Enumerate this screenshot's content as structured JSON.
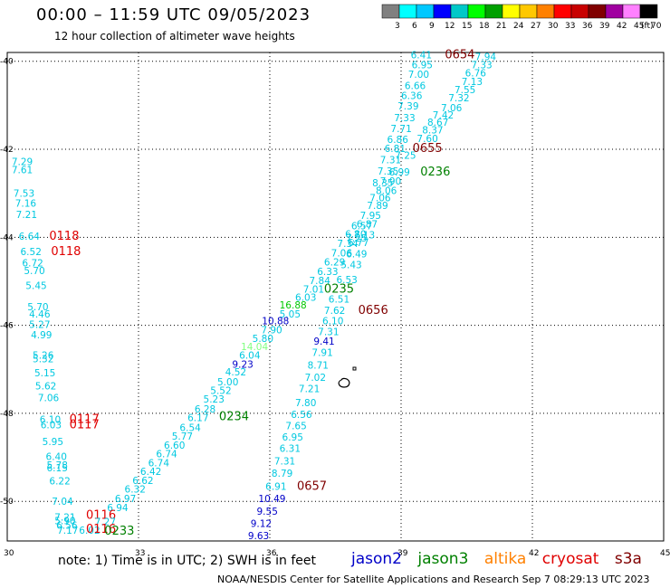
{
  "title": "00:00 – 11:59 UTC 09/05/2023",
  "subtitle": "12 hour collection of altimeter wave heights",
  "colorbar": {
    "unit": "(ft)",
    "ticks": [
      "3",
      "6",
      "9",
      "12",
      "15",
      "18",
      "21",
      "24",
      "27",
      "30",
      "33",
      "36",
      "39",
      "42",
      "45",
      "70"
    ],
    "colors": [
      "#808080",
      "#00ffff",
      "#00c8ff",
      "#0000ff",
      "#00c8c8",
      "#00ff00",
      "#00a000",
      "#ffff00",
      "#ffc800",
      "#ff8000",
      "#ff0000",
      "#c80000",
      "#800000",
      "#a000a0",
      "#ff80ff",
      "#000000"
    ]
  },
  "axes": {
    "lat_ticks": [
      "-40",
      "-42",
      "-44",
      "-46",
      "-48",
      "-50"
    ],
    "lon_ticks": [
      "30",
      "33",
      "36",
      "39",
      "42",
      "45"
    ]
  },
  "footer": {
    "note": "note: 1) Time is in UTC; 2) SWH is in feet",
    "credit": "NOAA/NESDIS Center for Satellite Applications and Research   Sep  7 08:29:13 UTC 2023"
  },
  "satellites": [
    {
      "name": "jason2",
      "color": "#0000c8"
    },
    {
      "name": "jason3",
      "color": "#008000"
    },
    {
      "name": "altika",
      "color": "#ff8000"
    },
    {
      "name": "cryosat",
      "color": "#e00000"
    },
    {
      "name": "s3a",
      "color": "#800000"
    }
  ],
  "map_labels": [
    {
      "t": "6.41",
      "lon": 39.22,
      "lat": -39.93,
      "c": "#00c8e0"
    },
    {
      "t": "0654",
      "lon": 40.0,
      "lat": -39.93,
      "c": "#800000"
    },
    {
      "t": "7.94",
      "lon": 40.69,
      "lat": -39.97,
      "c": "#00c8e0"
    },
    {
      "t": "6.95",
      "lon": 39.24,
      "lat": -40.16,
      "c": "#00c8e0"
    },
    {
      "t": "7.33",
      "lon": 40.6,
      "lat": -40.16,
      "c": "#00c8e0"
    },
    {
      "t": "7.00",
      "lon": 39.16,
      "lat": -40.38,
      "c": "#00c8e0"
    },
    {
      "t": "6.76",
      "lon": 40.46,
      "lat": -40.34,
      "c": "#00c8e0"
    },
    {
      "t": "6.66",
      "lon": 39.08,
      "lat": -40.63,
      "c": "#00c8e0"
    },
    {
      "t": "7.13",
      "lon": 40.38,
      "lat": -40.54,
      "c": "#00c8e0"
    },
    {
      "t": "6.36",
      "lon": 39.0,
      "lat": -40.86,
      "c": "#00c8e0"
    },
    {
      "t": "7.55",
      "lon": 40.22,
      "lat": -40.72,
      "c": "#00c8e0"
    },
    {
      "t": "7.32",
      "lon": 40.08,
      "lat": -40.91,
      "c": "#00c8e0"
    },
    {
      "t": "7.39",
      "lon": 38.92,
      "lat": -41.1,
      "c": "#00c8e0"
    },
    {
      "t": "7.06",
      "lon": 39.91,
      "lat": -41.14,
      "c": "#00c8e0"
    },
    {
      "t": "7.42",
      "lon": 39.72,
      "lat": -41.3,
      "c": "#00c8e0"
    },
    {
      "t": "7.33",
      "lon": 38.84,
      "lat": -41.36,
      "c": "#00c8e0"
    },
    {
      "t": "8.67",
      "lon": 39.6,
      "lat": -41.46,
      "c": "#00c8e0"
    },
    {
      "t": "7.71",
      "lon": 38.76,
      "lat": -41.61,
      "c": "#00c8e0"
    },
    {
      "t": "8.37",
      "lon": 39.48,
      "lat": -41.64,
      "c": "#00c8e0"
    },
    {
      "t": "6.86",
      "lon": 38.68,
      "lat": -41.86,
      "c": "#00c8e0"
    },
    {
      "t": "7.60",
      "lon": 39.36,
      "lat": -41.84,
      "c": "#00c8e0"
    },
    {
      "t": "6.81",
      "lon": 38.62,
      "lat": -42.06,
      "c": "#00c8e0"
    },
    {
      "t": "0655",
      "lon": 39.26,
      "lat": -42.06,
      "c": "#800000"
    },
    {
      "t": "7.25",
      "lon": 38.86,
      "lat": -42.22,
      "c": "#00c8e0"
    },
    {
      "t": "7.31",
      "lon": 38.52,
      "lat": -42.32,
      "c": "#00c8e0"
    },
    {
      "t": "7.35",
      "lon": 38.46,
      "lat": -42.58,
      "c": "#00c8e0"
    },
    {
      "t": "6.99",
      "lon": 38.72,
      "lat": -42.6,
      "c": "#00c8e0"
    },
    {
      "t": "0236",
      "lon": 39.44,
      "lat": -42.6,
      "c": "#008000"
    },
    {
      "t": "8.35",
      "lon": 38.34,
      "lat": -42.84,
      "c": "#00c8e0"
    },
    {
      "t": "7.90",
      "lon": 38.52,
      "lat": -42.8,
      "c": "#00c8e0"
    },
    {
      "t": "8.06",
      "lon": 38.42,
      "lat": -43.02,
      "c": "#00c8e0"
    },
    {
      "t": "7.06",
      "lon": 38.28,
      "lat": -43.18,
      "c": "#00c8e0"
    },
    {
      "t": "7.89",
      "lon": 38.22,
      "lat": -43.36,
      "c": "#00c8e0"
    },
    {
      "t": "7.95",
      "lon": 38.06,
      "lat": -43.58,
      "c": "#00c8e0"
    },
    {
      "t": "6.87",
      "lon": 37.98,
      "lat": -43.78,
      "c": "#00c8e0"
    },
    {
      "t": "6.57",
      "lon": 37.86,
      "lat": -43.82,
      "c": "#00c8e0"
    },
    {
      "t": "6.80",
      "lon": 37.72,
      "lat": -44.0,
      "c": "#00c8e0"
    },
    {
      "t": "7.13",
      "lon": 37.92,
      "lat": -44.02,
      "c": "#00c8e0"
    },
    {
      "t": "7.25",
      "lon": 37.74,
      "lat": -44.1,
      "c": "#00c8e0"
    },
    {
      "t": "7.34",
      "lon": 37.54,
      "lat": -44.22,
      "c": "#00c8e0"
    },
    {
      "t": "6.77",
      "lon": 37.78,
      "lat": -44.2,
      "c": "#00c8e0"
    },
    {
      "t": "7.06",
      "lon": 37.4,
      "lat": -44.44,
      "c": "#00c8e0"
    },
    {
      "t": "6.49",
      "lon": 37.74,
      "lat": -44.46,
      "c": "#00c8e0"
    },
    {
      "t": "6.29",
      "lon": 37.24,
      "lat": -44.64,
      "c": "#00c8e0"
    },
    {
      "t": "5.43",
      "lon": 37.62,
      "lat": -44.7,
      "c": "#00c8e0"
    },
    {
      "t": "6.33",
      "lon": 37.08,
      "lat": -44.86,
      "c": "#00c8e0"
    },
    {
      "t": "7.84",
      "lon": 36.9,
      "lat": -45.06,
      "c": "#00c8e0"
    },
    {
      "t": "6.53",
      "lon": 37.52,
      "lat": -45.04,
      "c": "#00c8e0"
    },
    {
      "t": "7.01",
      "lon": 36.76,
      "lat": -45.26,
      "c": "#00c8e0"
    },
    {
      "t": "0235",
      "lon": 37.24,
      "lat": -45.26,
      "c": "#008000"
    },
    {
      "t": "6.03",
      "lon": 36.58,
      "lat": -45.44,
      "c": "#00c8e0"
    },
    {
      "t": "6.51",
      "lon": 37.34,
      "lat": -45.48,
      "c": "#00c8e0"
    },
    {
      "t": "16.88",
      "lon": 36.22,
      "lat": -45.62,
      "c": "#00c800"
    },
    {
      "t": "7.62",
      "lon": 37.24,
      "lat": -45.74,
      "c": "#00c8e0"
    },
    {
      "t": "0656",
      "lon": 38.02,
      "lat": -45.74,
      "c": "#800000"
    },
    {
      "t": "5.05",
      "lon": 36.22,
      "lat": -45.82,
      "c": "#00c8e0"
    },
    {
      "t": "10.88",
      "lon": 35.82,
      "lat": -45.98,
      "c": "#0000c8"
    },
    {
      "t": "6.10",
      "lon": 37.2,
      "lat": -45.98,
      "c": "#00c8e0"
    },
    {
      "t": "7.90",
      "lon": 35.8,
      "lat": -46.18,
      "c": "#00c8e0"
    },
    {
      "t": "7.31",
      "lon": 37.1,
      "lat": -46.22,
      "c": "#00c8e0"
    },
    {
      "t": "5.80",
      "lon": 35.6,
      "lat": -46.38,
      "c": "#00c8e0"
    },
    {
      "t": "9.41",
      "lon": 37.0,
      "lat": -46.44,
      "c": "#0000c8"
    },
    {
      "t": "14.04",
      "lon": 35.34,
      "lat": -46.56,
      "c": "#80ff80"
    },
    {
      "t": "6.04",
      "lon": 35.3,
      "lat": -46.76,
      "c": "#00c8e0"
    },
    {
      "t": "7.91",
      "lon": 36.96,
      "lat": -46.7,
      "c": "#00c8e0"
    },
    {
      "t": "9.23",
      "lon": 35.14,
      "lat": -46.96,
      "c": "#0000c8"
    },
    {
      "t": "8.71",
      "lon": 36.86,
      "lat": -46.98,
      "c": "#00c8e0"
    },
    {
      "t": "4.52",
      "lon": 34.98,
      "lat": -47.14,
      "c": "#00c8e0"
    },
    {
      "t": "7.02",
      "lon": 36.8,
      "lat": -47.26,
      "c": "#00c8e0"
    },
    {
      "t": "5.00",
      "lon": 34.8,
      "lat": -47.36,
      "c": "#00c8e0"
    },
    {
      "t": "7.21",
      "lon": 36.66,
      "lat": -47.52,
      "c": "#00c8e0"
    },
    {
      "t": "5.52",
      "lon": 34.64,
      "lat": -47.56,
      "c": "#00c8e0"
    },
    {
      "t": "5.23",
      "lon": 34.48,
      "lat": -47.76,
      "c": "#00c8e0"
    },
    {
      "t": "7.80",
      "lon": 36.58,
      "lat": -47.84,
      "c": "#00c8e0"
    },
    {
      "t": "6.28",
      "lon": 34.28,
      "lat": -47.98,
      "c": "#00c8e0"
    },
    {
      "t": "6.56",
      "lon": 36.48,
      "lat": -48.1,
      "c": "#00c8e0"
    },
    {
      "t": "6.17",
      "lon": 34.12,
      "lat": -48.18,
      "c": "#00c8e0"
    },
    {
      "t": "0234",
      "lon": 34.84,
      "lat": -48.16,
      "c": "#008000"
    },
    {
      "t": "7.65",
      "lon": 36.36,
      "lat": -48.36,
      "c": "#00c8e0"
    },
    {
      "t": "6.54",
      "lon": 33.94,
      "lat": -48.4,
      "c": "#00c8e0"
    },
    {
      "t": "5.77",
      "lon": 33.76,
      "lat": -48.6,
      "c": "#00c8e0"
    },
    {
      "t": "6.95",
      "lon": 36.28,
      "lat": -48.62,
      "c": "#00c8e0"
    },
    {
      "t": "6.60",
      "lon": 33.58,
      "lat": -48.8,
      "c": "#00c8e0"
    },
    {
      "t": "6.31",
      "lon": 36.22,
      "lat": -48.88,
      "c": "#00c8e0"
    },
    {
      "t": "6.74",
      "lon": 33.4,
      "lat": -49.0,
      "c": "#00c8e0"
    },
    {
      "t": "7.31",
      "lon": 36.1,
      "lat": -49.16,
      "c": "#00c8e0"
    },
    {
      "t": "6.74",
      "lon": 33.22,
      "lat": -49.2,
      "c": "#00c8e0"
    },
    {
      "t": "6.42",
      "lon": 33.04,
      "lat": -49.4,
      "c": "#00c8e0"
    },
    {
      "t": "8.79",
      "lon": 36.04,
      "lat": -49.44,
      "c": "#00c8e0"
    },
    {
      "t": "6.62",
      "lon": 32.86,
      "lat": -49.6,
      "c": "#00c8e0"
    },
    {
      "t": "0657",
      "lon": 36.62,
      "lat": -49.74,
      "c": "#800000"
    },
    {
      "t": "6.91",
      "lon": 35.9,
      "lat": -49.74,
      "c": "#00c8e0"
    },
    {
      "t": "6.32",
      "lon": 32.68,
      "lat": -49.8,
      "c": "#00c8e0"
    },
    {
      "t": "6.97",
      "lon": 32.46,
      "lat": -50.02,
      "c": "#00c8e0"
    },
    {
      "t": "10.49",
      "lon": 35.74,
      "lat": -50.02,
      "c": "#0000c8"
    },
    {
      "t": "6.94",
      "lon": 32.28,
      "lat": -50.22,
      "c": "#00c8e0"
    },
    {
      "t": "9.55",
      "lon": 35.7,
      "lat": -50.3,
      "c": "#0000c8"
    },
    {
      "t": "0116",
      "lon": 31.8,
      "lat": -50.4,
      "c": "#e00000"
    },
    {
      "t": "7.27",
      "lon": 32.0,
      "lat": -50.54,
      "c": "#00c8e0"
    },
    {
      "t": "9.12",
      "lon": 35.56,
      "lat": -50.58,
      "c": "#0000c8"
    },
    {
      "t": "7.17",
      "lon": 31.14,
      "lat": -50.74,
      "c": "#00c8e0"
    },
    {
      "t": "6.02",
      "lon": 31.64,
      "lat": -50.74,
      "c": "#00c8e0"
    },
    {
      "t": "0116",
      "lon": 31.8,
      "lat": -50.72,
      "c": "#e00000"
    },
    {
      "t": "0233",
      "lon": 32.22,
      "lat": -50.76,
      "c": "#008000"
    },
    {
      "t": "9.63",
      "lon": 35.5,
      "lat": -50.86,
      "c": "#0000c8"
    },
    {
      "t": "7.29",
      "lon": 30.1,
      "lat": -42.36,
      "c": "#00c8e0"
    },
    {
      "t": "7.61",
      "lon": 30.1,
      "lat": -42.54,
      "c": "#00c8e0"
    },
    {
      "t": "7.53",
      "lon": 30.14,
      "lat": -43.08,
      "c": "#00c8e0"
    },
    {
      "t": "7.16",
      "lon": 30.18,
      "lat": -43.3,
      "c": "#00c8e0"
    },
    {
      "t": "7.21",
      "lon": 30.2,
      "lat": -43.56,
      "c": "#00c8e0"
    },
    {
      "t": "6.64",
      "lon": 30.26,
      "lat": -44.06,
      "c": "#00c8e0"
    },
    {
      "t": "0118",
      "lon": 30.96,
      "lat": -44.06,
      "c": "#e00000"
    },
    {
      "t": "6.52",
      "lon": 30.3,
      "lat": -44.4,
      "c": "#00c8e0"
    },
    {
      "t": "0118",
      "lon": 31.0,
      "lat": -44.4,
      "c": "#e00000"
    },
    {
      "t": "6.72",
      "lon": 30.34,
      "lat": -44.66,
      "c": "#00c8e0"
    },
    {
      "t": "5.70",
      "lon": 30.38,
      "lat": -44.84,
      "c": "#00c8e0"
    },
    {
      "t": "5.45",
      "lon": 30.42,
      "lat": -45.18,
      "c": "#00c8e0"
    },
    {
      "t": "5.70",
      "lon": 30.46,
      "lat": -45.66,
      "c": "#00c8e0"
    },
    {
      "t": "4.46",
      "lon": 30.5,
      "lat": -45.82,
      "c": "#00c8e0"
    },
    {
      "t": "5.27",
      "lon": 30.5,
      "lat": -46.06,
      "c": "#00c8e0"
    },
    {
      "t": "4.99",
      "lon": 30.54,
      "lat": -46.3,
      "c": "#00c8e0"
    },
    {
      "t": "5.26",
      "lon": 30.58,
      "lat": -46.76,
      "c": "#00c8e0"
    },
    {
      "t": "5.32",
      "lon": 30.58,
      "lat": -46.84,
      "c": "#00c8e0"
    },
    {
      "t": "5.15",
      "lon": 30.62,
      "lat": -47.16,
      "c": "#00c8e0"
    },
    {
      "t": "5.62",
      "lon": 30.64,
      "lat": -47.46,
      "c": "#00c8e0"
    },
    {
      "t": "7.06",
      "lon": 30.7,
      "lat": -47.72,
      "c": "#00c8e0"
    },
    {
      "t": "6.10",
      "lon": 30.74,
      "lat": -48.22,
      "c": "#00c8e0"
    },
    {
      "t": "0117",
      "lon": 31.42,
      "lat": -48.22,
      "c": "#e00000"
    },
    {
      "t": "6.03",
      "lon": 30.76,
      "lat": -48.34,
      "c": "#00c8e0"
    },
    {
      "t": "0117",
      "lon": 31.42,
      "lat": -48.34,
      "c": "#e00000"
    },
    {
      "t": "5.95",
      "lon": 30.8,
      "lat": -48.72,
      "c": "#00c8e0"
    },
    {
      "t": "6.40",
      "lon": 30.88,
      "lat": -49.06,
      "c": "#00c8e0"
    },
    {
      "t": "5.78",
      "lon": 30.9,
      "lat": -49.26,
      "c": "#00c8e0"
    },
    {
      "t": "6.15",
      "lon": 30.9,
      "lat": -49.32,
      "c": "#00c8e0"
    },
    {
      "t": "6.22",
      "lon": 30.96,
      "lat": -49.62,
      "c": "#00c8e0"
    },
    {
      "t": "7.04",
      "lon": 31.02,
      "lat": -50.08,
      "c": "#00c8e0"
    },
    {
      "t": "7.21",
      "lon": 31.08,
      "lat": -50.44,
      "c": "#00c8e0"
    },
    {
      "t": "5.90",
      "lon": 31.08,
      "lat": -50.52,
      "c": "#00c8e0"
    },
    {
      "t": "6.56",
      "lon": 31.12,
      "lat": -50.62,
      "c": "#00c8e0"
    }
  ]
}
